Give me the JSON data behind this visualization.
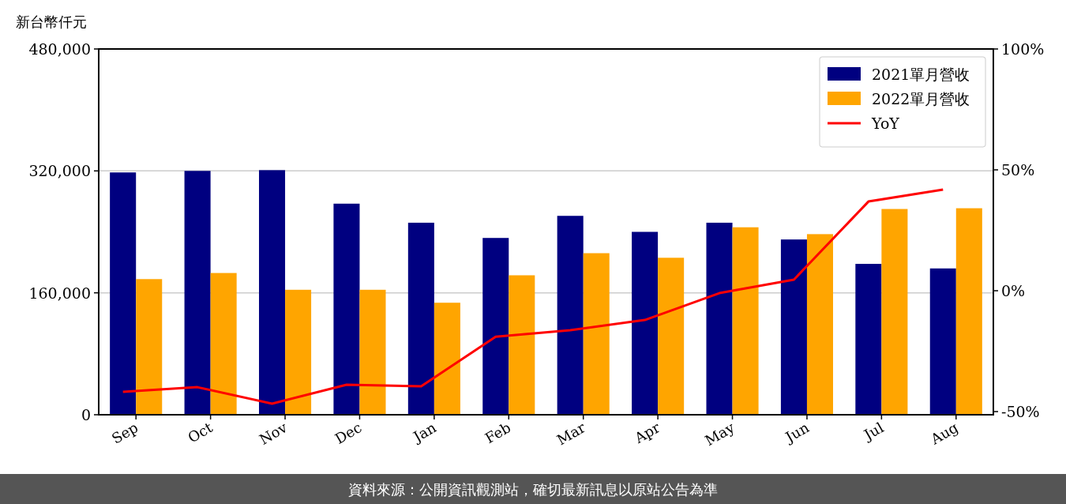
{
  "chart_data": {
    "type": "bar",
    "ylabel": "新台幣仟元",
    "categories": [
      "Sep",
      "Oct",
      "Nov",
      "Dec",
      "Jan",
      "Feb",
      "Mar",
      "Apr",
      "May",
      "Jun",
      "Jul",
      "Aug"
    ],
    "series": [
      {
        "name": "2021單月營收",
        "color": "#000080",
        "values": [
          318000,
          320000,
          321000,
          277000,
          252000,
          232000,
          261000,
          240000,
          252000,
          230000,
          198000,
          192000
        ]
      },
      {
        "name": "2022單月營收",
        "color": "#ffa500",
        "values": [
          178000,
          186000,
          164000,
          164000,
          147000,
          183000,
          212000,
          206000,
          246000,
          237000,
          270000,
          271000
        ]
      },
      {
        "name": "YoY",
        "type": "line",
        "axis": "y2",
        "color": "#ff0000",
        "values": [
          -41.8,
          -39.9,
          -46.7,
          -38.9,
          -39.5,
          -19.0,
          -16.3,
          -12.1,
          -1.0,
          4.6,
          36.9,
          41.8
        ]
      }
    ],
    "ylim": [
      0,
      480000
    ],
    "yticks": [
      {
        "value": 0,
        "label": "0"
      },
      {
        "value": 160000,
        "label": "160,000"
      },
      {
        "value": 320000,
        "label": "320,000"
      },
      {
        "value": 480000,
        "label": "480,000"
      }
    ],
    "y2lim": [
      -51.3,
      100
    ],
    "y2ticks": [
      {
        "value": -50,
        "label": "-50%"
      },
      {
        "value": 0,
        "label": "0%"
      },
      {
        "value": 50,
        "label": "50%"
      },
      {
        "value": 100,
        "label": "100%"
      }
    ],
    "grid": "y",
    "legend": "top right",
    "marker": "none",
    "line_style": "solid",
    "annotations": [
      "資料來源：公開資訊觀測站，確切最新訊息以原站公告為準"
    ]
  }
}
